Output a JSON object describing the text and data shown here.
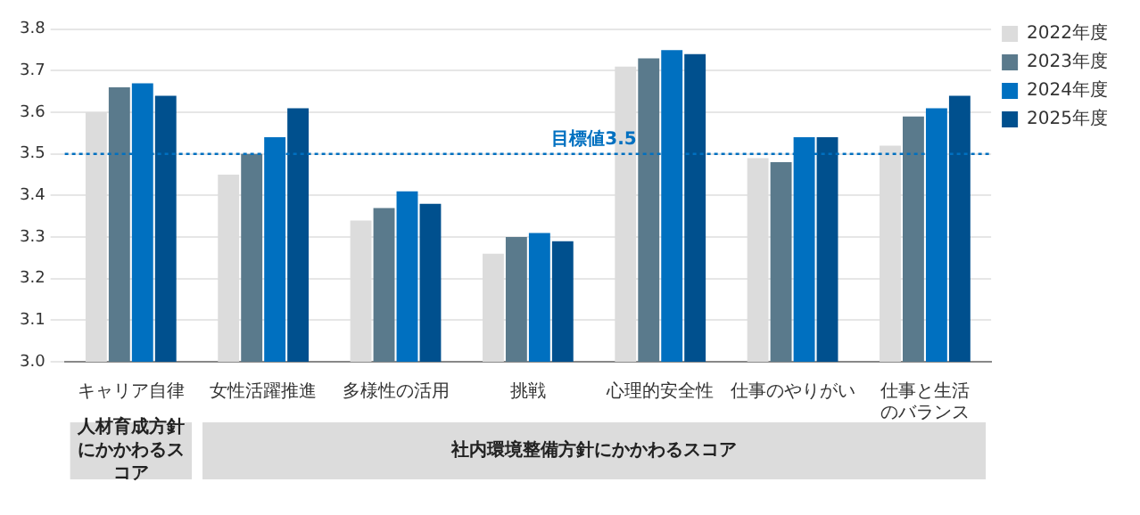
{
  "chart_data": {
    "type": "bar",
    "categories": [
      "キャリア自律",
      "女性活躍推進",
      "多様性の活用",
      "挑戦",
      "心理的安全性",
      "仕事のやりがい",
      "仕事と生活のバランス"
    ],
    "series": [
      {
        "name": "2022年度",
        "color": "#dcdcdc",
        "values": [
          3.6,
          3.45,
          3.34,
          3.26,
          3.71,
          3.49,
          3.52
        ]
      },
      {
        "name": "2023年度",
        "color": "#5a7a8c",
        "values": [
          3.66,
          3.5,
          3.37,
          3.3,
          3.73,
          3.48,
          3.59
        ]
      },
      {
        "name": "2024年度",
        "color": "#0070c0",
        "values": [
          3.67,
          3.54,
          3.41,
          3.31,
          3.75,
          3.54,
          3.61
        ]
      },
      {
        "name": "2025年度",
        "color": "#00508e",
        "values": [
          3.64,
          3.61,
          3.38,
          3.29,
          3.74,
          3.54,
          3.64
        ]
      }
    ],
    "ylim": [
      3.0,
      3.8
    ],
    "yticks": [
      {
        "value": 3,
        "label": "3.0"
      },
      3.1,
      3.2,
      3.3,
      3.4,
      3.5,
      3.6,
      3.7,
      3.8
    ],
    "grid": "y",
    "legend": "top right",
    "ref_lines": [
      {
        "axis": "y",
        "value": 3.5,
        "label": "目標値3.5",
        "color": "#0070c0",
        "line_style": "dotted"
      }
    ],
    "annotations": [
      "人材育成方針にかかわるスコア",
      "社内環境整備方針にかかわるスコア"
    ]
  }
}
